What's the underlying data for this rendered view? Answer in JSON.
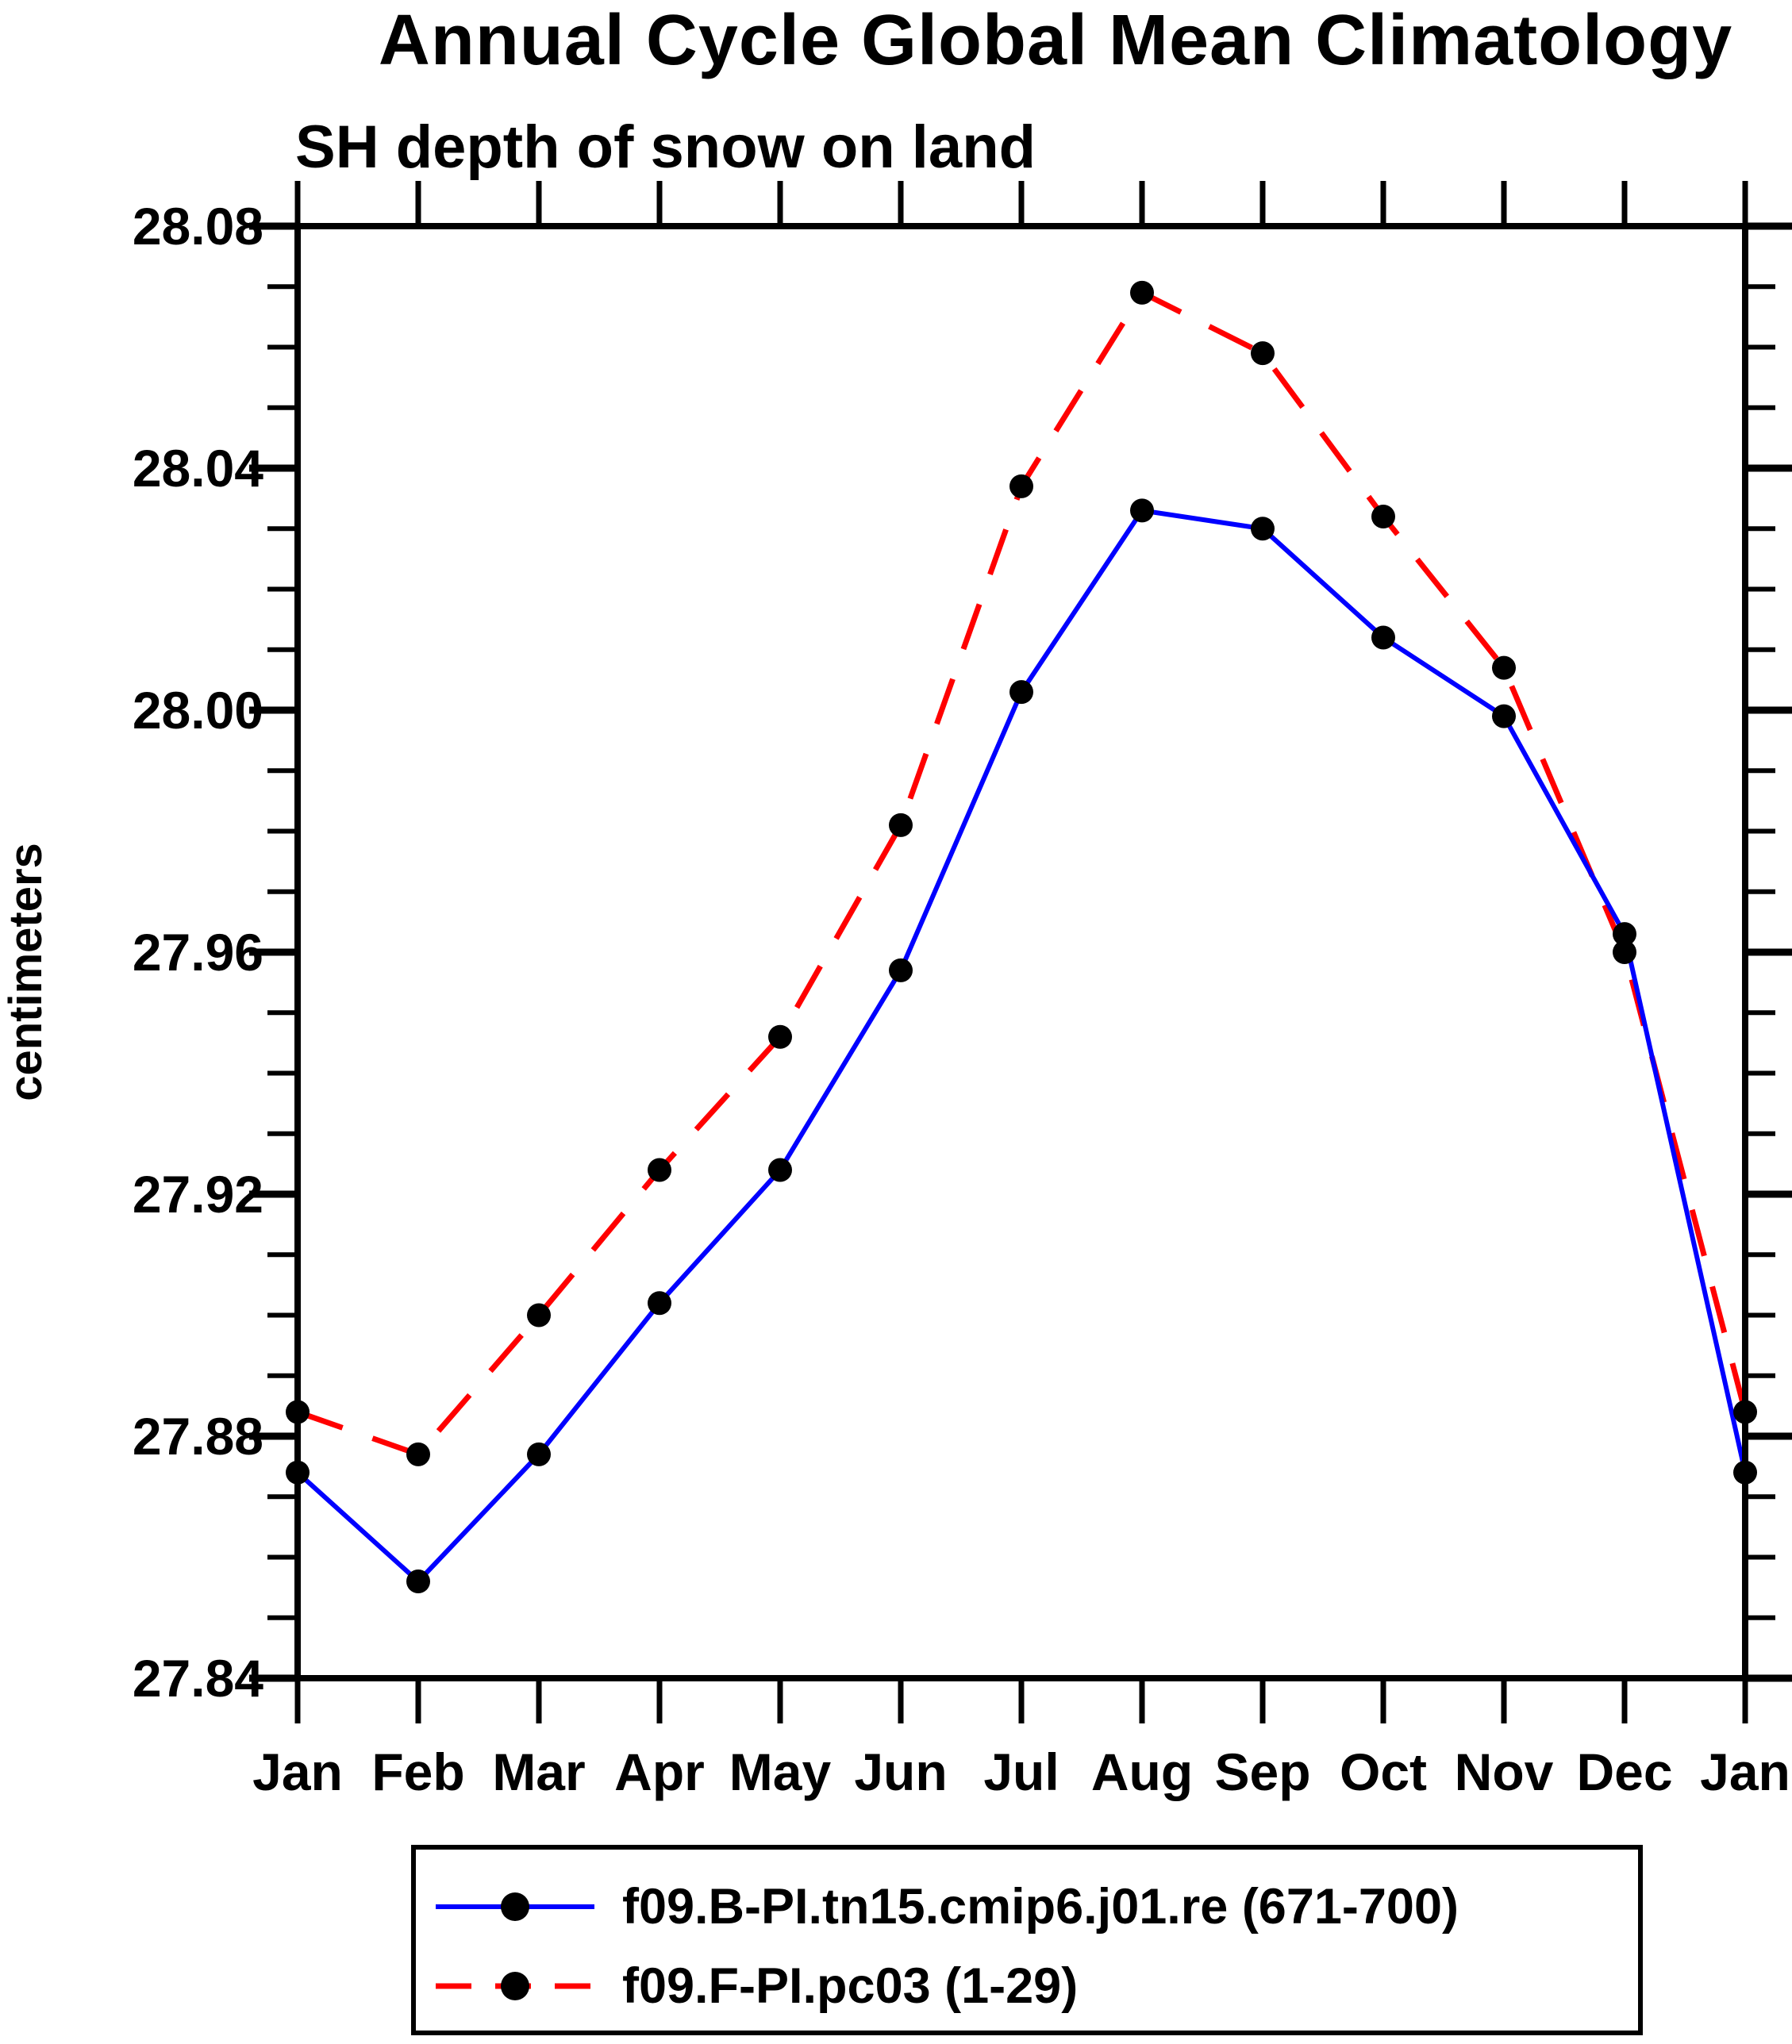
{
  "chart_data": {
    "type": "line",
    "title": "Annual Cycle Global Mean Climatology",
    "subtitle": "SH depth of snow on land",
    "ylabel": "centimeters",
    "categories": [
      "Jan",
      "Feb",
      "Mar",
      "Apr",
      "May",
      "Jun",
      "Jul",
      "Aug",
      "Sep",
      "Oct",
      "Nov",
      "Dec",
      "Jan"
    ],
    "ylim": [
      27.84,
      28.08
    ],
    "y_ticks": {
      "major_values": [
        28.08,
        28.04,
        28.0,
        27.96,
        27.92,
        27.88,
        27.84
      ],
      "major_labels": [
        "28.08",
        "28.04",
        "28.00",
        "27.96",
        "27.92",
        "27.88",
        "27.84"
      ],
      "minor_step": 0.01
    },
    "grid": "off",
    "legend_position": "bottom",
    "marker_color": "#000000",
    "series": [
      {
        "name": "f09.B-PI.tn15.cmip6.j01.re (671-700)",
        "color": "#0000ff",
        "style": "solid",
        "marker": "filled-circle",
        "values": [
          27.874,
          27.856,
          27.877,
          27.902,
          27.924,
          27.957,
          28.003,
          28.033,
          28.03,
          28.012,
          27.999,
          27.963,
          27.874
        ]
      },
      {
        "name": "f09.F-PI.pc03 (1-29)",
        "color": "#ff0000",
        "style": "dashed",
        "marker": "filled-circle",
        "values": [
          27.884,
          27.877,
          27.9,
          27.924,
          27.946,
          27.981,
          28.037,
          28.069,
          28.059,
          28.032,
          28.007,
          27.96,
          27.884
        ]
      }
    ]
  }
}
